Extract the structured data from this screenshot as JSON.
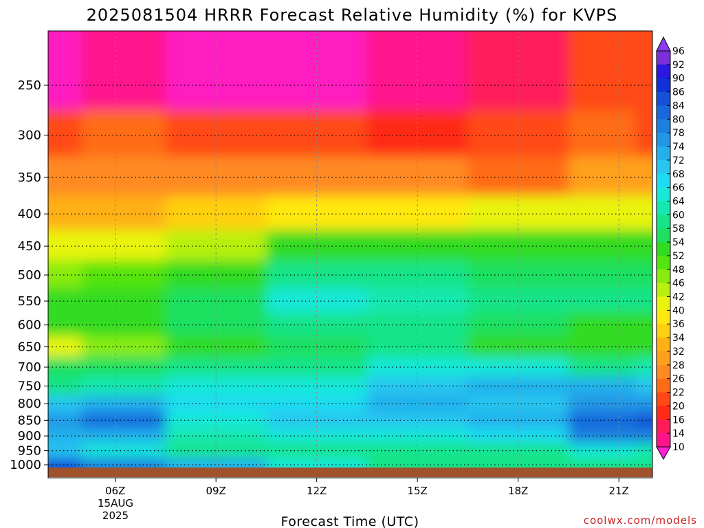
{
  "chart_data": {
    "type": "heatmap",
    "title": "2025081504 HRRR Forecast Relative Humidity (%) for KVPS",
    "xlabel": "Forecast Time (UTC)",
    "ylabel": "",
    "x_ticks": [
      "06Z",
      "09Z",
      "12Z",
      "15Z",
      "18Z",
      "21Z"
    ],
    "x_date_lines": [
      "15AUG",
      "2025"
    ],
    "x_hours": [
      4,
      6,
      9,
      12,
      15,
      18,
      21,
      22
    ],
    "xlim": [
      4.0,
      22.0
    ],
    "y_levels_hPa": [
      250,
      300,
      350,
      400,
      450,
      500,
      550,
      600,
      650,
      700,
      750,
      800,
      850,
      900,
      950,
      1000
    ],
    "ylim_hPa": [
      205,
      1010
    ],
    "y_scale": "log",
    "grid": true,
    "colorbar": {
      "labels": [
        "96",
        "92",
        "90",
        "86",
        "84",
        "80",
        "78",
        "74",
        "72",
        "68",
        "66",
        "64",
        "60",
        "58",
        "54",
        "52",
        "48",
        "46",
        "42",
        "40",
        "36",
        "34",
        "32",
        "28",
        "26",
        "22",
        "20",
        "16",
        "14",
        "10"
      ],
      "colors": [
        "#7a30d8",
        "#2a18e0",
        "#1030d8",
        "#1450d8",
        "#1868dc",
        "#1c80e0",
        "#2098e6",
        "#24b0ec",
        "#28c6f0",
        "#1edcf0",
        "#18e8d8",
        "#14e8b0",
        "#16e488",
        "#1ee060",
        "#30dc20",
        "#54e410",
        "#88ec10",
        "#b8f010",
        "#e8f410",
        "#ffe810",
        "#ffd010",
        "#ffb014",
        "#ffa01c",
        "#ff8a22",
        "#ff6c18",
        "#ff4818",
        "#ff2a18",
        "#ff1a5a",
        "#ff148c",
        "#ff1cc0"
      ],
      "top_arrow_color": "#8a3cf0",
      "bottom_arrow_color": "#ff20d8"
    },
    "rh_profile_by_hour": [
      {
        "hour": 4,
        "rh": [
          12,
          24,
          30,
          35,
          44,
          50,
          56,
          56,
          42,
          58,
          62,
          72,
          78,
          74,
          72,
          88
        ]
      },
      {
        "hour": 6,
        "rh": [
          14,
          26,
          30,
          34,
          44,
          52,
          56,
          56,
          50,
          58,
          64,
          76,
          84,
          74,
          66,
          82
        ]
      },
      {
        "hour": 9,
        "rh": [
          12,
          24,
          30,
          36,
          46,
          56,
          58,
          58,
          56,
          60,
          66,
          70,
          66,
          64,
          60,
          76
        ]
      },
      {
        "hour": 12,
        "rh": [
          12,
          22,
          28,
          40,
          54,
          62,
          66,
          62,
          58,
          62,
          66,
          70,
          72,
          66,
          62,
          66
        ]
      },
      {
        "hour": 15,
        "rh": [
          14,
          20,
          28,
          40,
          54,
          60,
          64,
          62,
          60,
          66,
          72,
          74,
          72,
          66,
          60,
          62
        ]
      },
      {
        "hour": 18,
        "rh": [
          16,
          22,
          26,
          42,
          54,
          58,
          60,
          58,
          54,
          66,
          76,
          72,
          74,
          70,
          62,
          60
        ]
      },
      {
        "hour": 21,
        "rh": [
          22,
          26,
          32,
          42,
          54,
          58,
          60,
          56,
          54,
          62,
          74,
          78,
          84,
          80,
          66,
          60
        ]
      },
      {
        "hour": 22,
        "rh": [
          24,
          24,
          32,
          42,
          54,
          58,
          60,
          56,
          54,
          64,
          72,
          78,
          86,
          80,
          64,
          62
        ]
      }
    ]
  },
  "credit": "coolwx.com/models"
}
